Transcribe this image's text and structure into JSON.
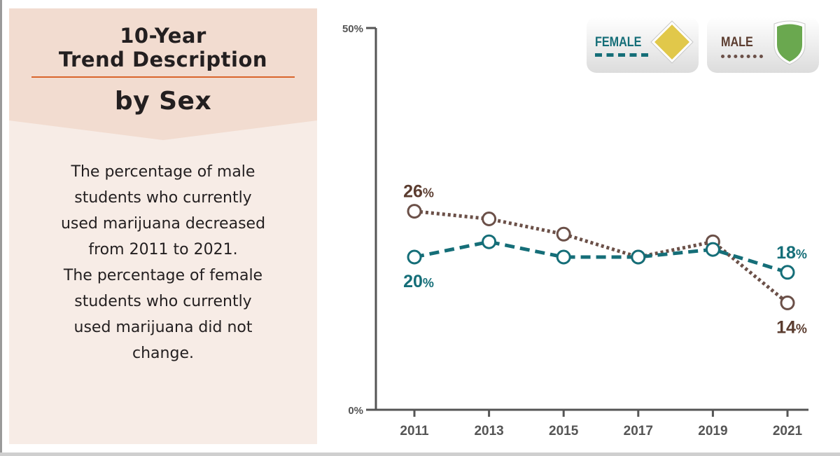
{
  "panel": {
    "title_line1": "10-Year",
    "title_line2": "Trend Description",
    "subtitle": "by Sex",
    "body_lines": [
      "The percentage of male",
      "students who currently",
      "used marijuana decreased",
      "from 2011 to 2021.",
      "The percentage of female",
      "students who currently",
      "used marijuana did not",
      "change."
    ]
  },
  "legend": {
    "female_label": "FEMALE",
    "male_label": "MALE",
    "female_icon": "yellow-diamond-sign-icon",
    "male_icon": "green-shield-icon"
  },
  "colors": {
    "female": "#156e78",
    "male": "#6b5048",
    "male_label": "#5b3c2f",
    "axis": "#555555",
    "panel_bg": "#f7ece6",
    "panel_header": "#f2dcd0",
    "rule": "#d9652c"
  },
  "chart_data": {
    "type": "line",
    "x": [
      "2011",
      "2013",
      "2015",
      "2017",
      "2019",
      "2021"
    ],
    "ylim": [
      0,
      50
    ],
    "ytick_labels": [
      "0%",
      "50%"
    ],
    "series": [
      {
        "name": "FEMALE",
        "values": [
          20,
          22,
          20,
          20,
          21,
          18
        ],
        "style": "dashed",
        "labels": [
          {
            "index": 0,
            "text": "20",
            "unit": "%"
          },
          {
            "index": 5,
            "text": "18",
            "unit": "%"
          }
        ]
      },
      {
        "name": "MALE",
        "values": [
          26,
          25,
          23,
          20,
          22,
          14
        ],
        "style": "dotted",
        "labels": [
          {
            "index": 0,
            "text": "26",
            "unit": "%"
          },
          {
            "index": 5,
            "text": "14",
            "unit": "%"
          }
        ]
      }
    ]
  }
}
